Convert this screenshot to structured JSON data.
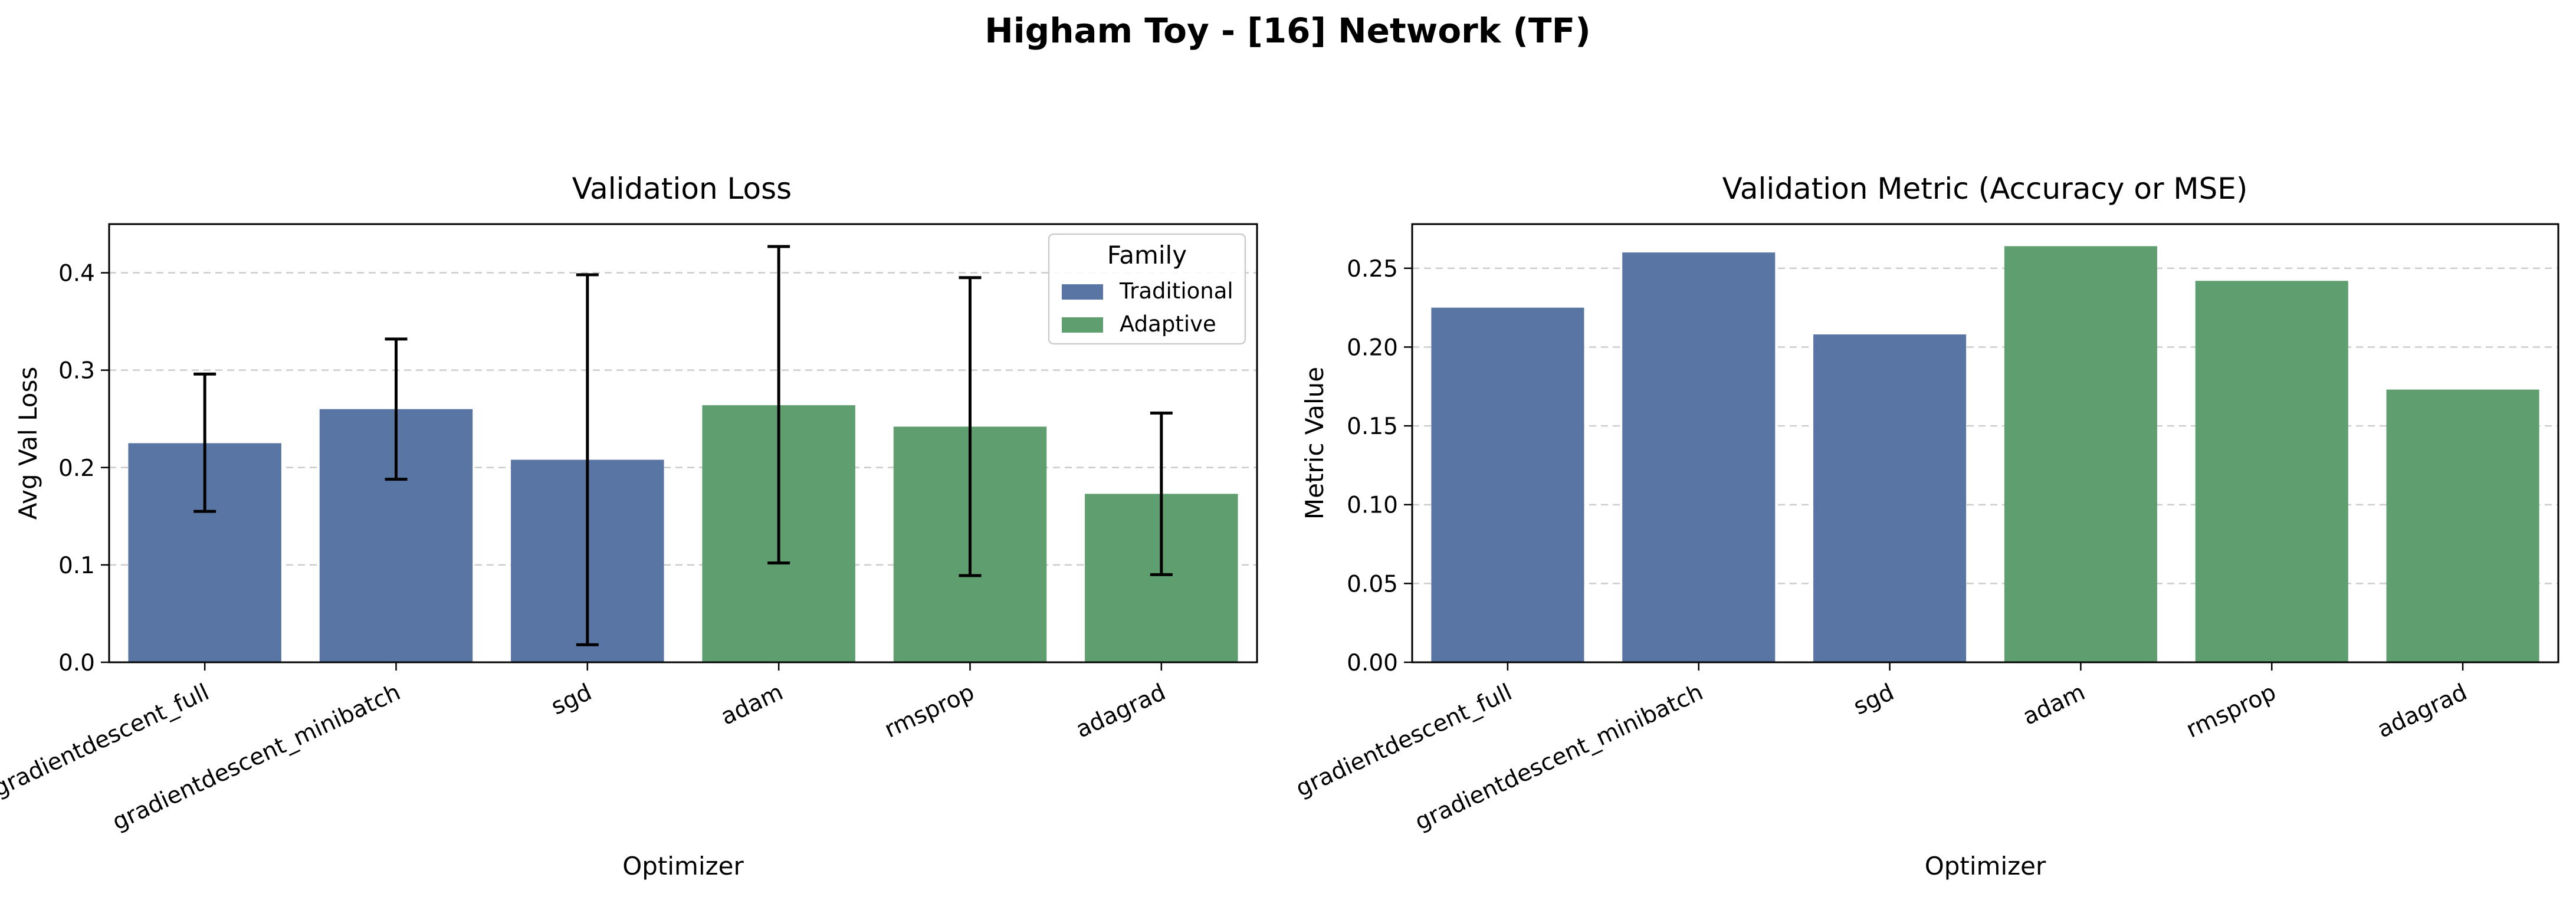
{
  "title": "Higham Toy - [16] Network (TF)",
  "colors": {
    "Traditional": "#5975a4",
    "Adaptive": "#5f9e6e",
    "error_bar": "#000000",
    "grid": "#cccccc"
  },
  "chart_data": [
    {
      "type": "bar",
      "title": "Validation Loss",
      "xlabel": "Optimizer",
      "ylabel": "Avg Val Loss",
      "categories": [
        "gradientdescent_full",
        "gradientdescent_minibatch",
        "sgd",
        "adam",
        "rmsprop",
        "adagrad"
      ],
      "family": [
        "Traditional",
        "Traditional",
        "Traditional",
        "Adaptive",
        "Adaptive",
        "Adaptive"
      ],
      "values": [
        0.225,
        0.26,
        0.208,
        0.264,
        0.242,
        0.173
      ],
      "error_low": [
        0.155,
        0.188,
        0.018,
        0.102,
        0.089,
        0.09
      ],
      "error_high": [
        0.296,
        0.332,
        0.398,
        0.427,
        0.395,
        0.256
      ],
      "ylim": [
        0,
        0.45
      ],
      "yticks": [
        "0.0",
        "0.1",
        "0.2",
        "0.3",
        "0.4"
      ],
      "grid": "y dashed",
      "legend": {
        "title": "Family",
        "placement": "top-right",
        "entries": [
          "Traditional",
          "Adaptive"
        ]
      }
    },
    {
      "type": "bar",
      "title": "Validation Metric (Accuracy or MSE)",
      "xlabel": "Optimizer",
      "ylabel": "Metric Value",
      "categories": [
        "gradientdescent_full",
        "gradientdescent_minibatch",
        "sgd",
        "adam",
        "rmsprop",
        "adagrad"
      ],
      "family": [
        "Traditional",
        "Traditional",
        "Traditional",
        "Adaptive",
        "Adaptive",
        "Adaptive"
      ],
      "values": [
        0.225,
        0.26,
        0.208,
        0.264,
        0.242,
        0.173
      ],
      "ylim": [
        0,
        0.278
      ],
      "yticks": [
        "0.00",
        "0.05",
        "0.10",
        "0.15",
        "0.20",
        "0.25"
      ],
      "grid": "y dashed"
    }
  ]
}
